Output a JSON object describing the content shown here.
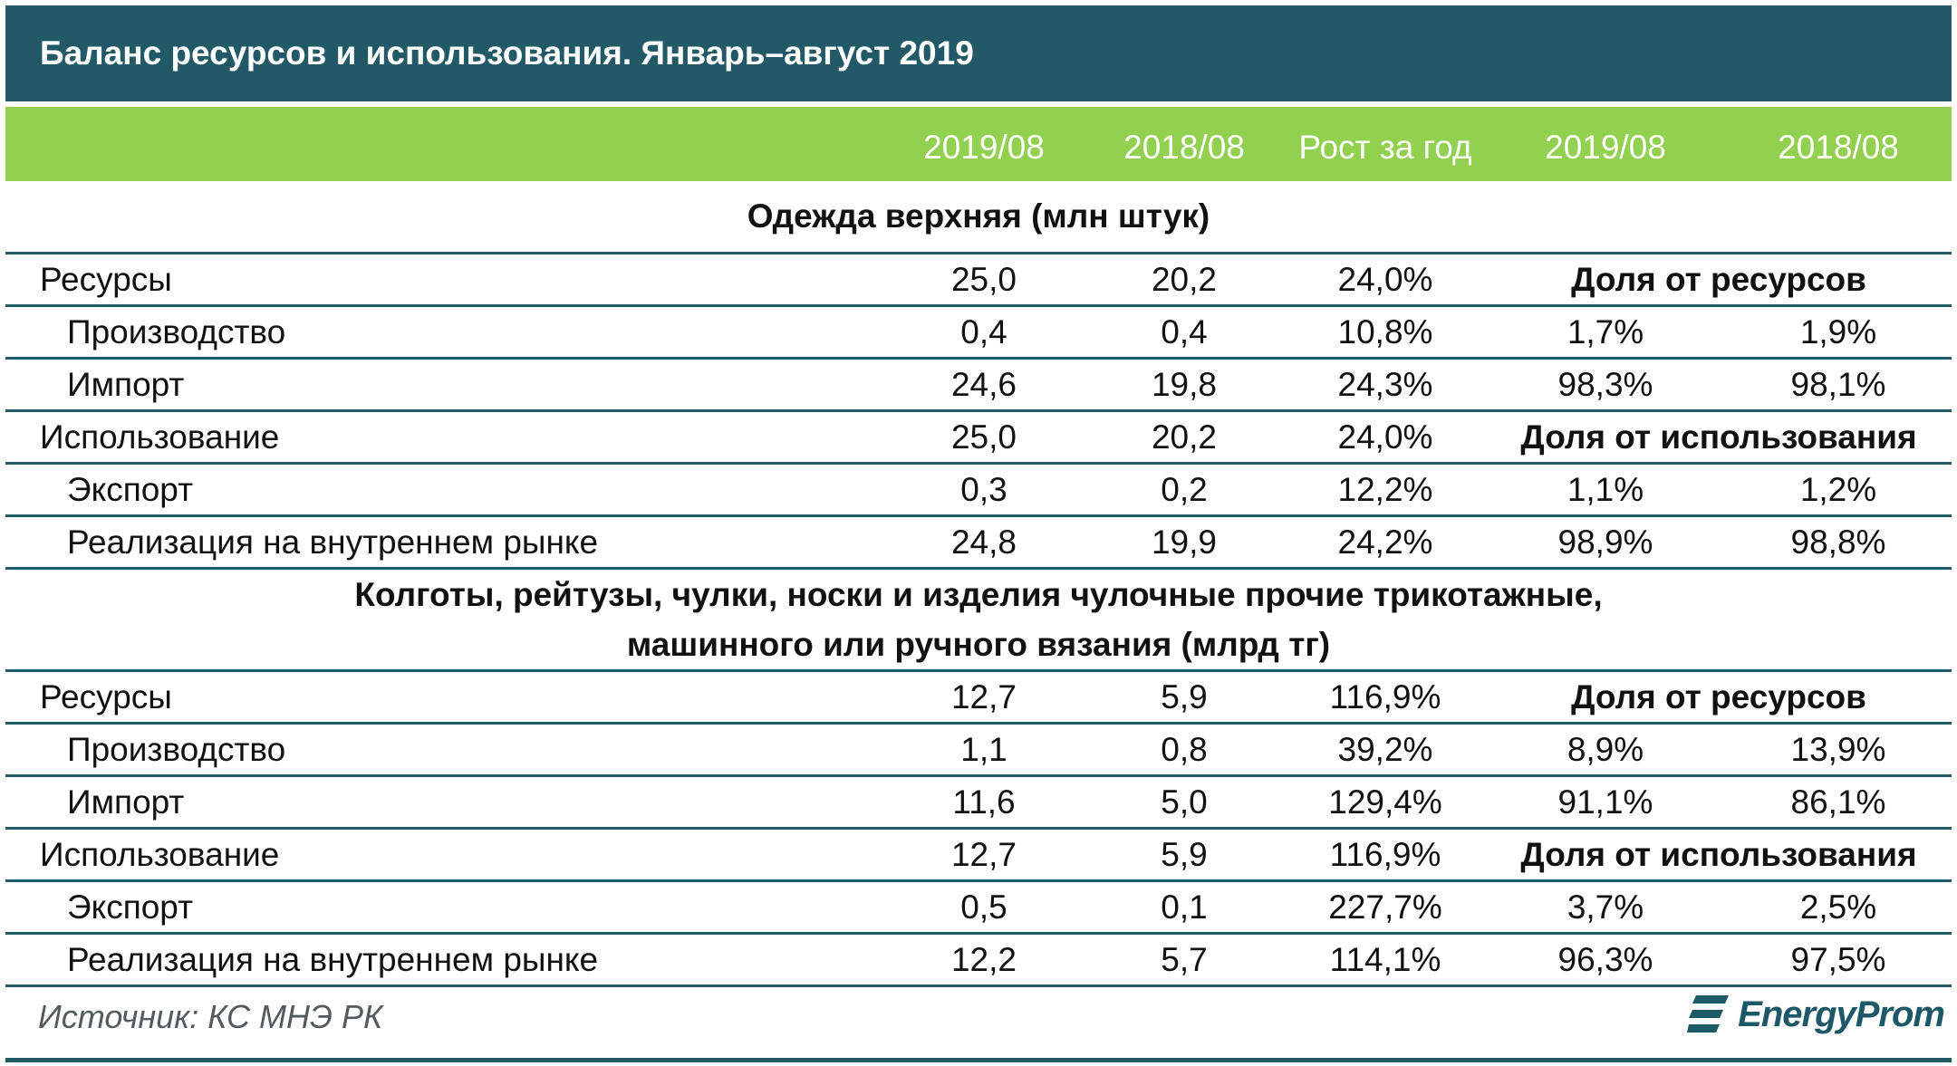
{
  "title": "Баланс ресурсов и использования. Январь–август 2019",
  "columns": [
    "2019/08",
    "2018/08",
    "Рост за год",
    "2019/08",
    "2018/08"
  ],
  "sections": [
    {
      "heading": "Одежда верхняя (млн штук)",
      "rows": [
        {
          "label": "Ресурсы",
          "v1": "25,0",
          "v2": "20,2",
          "growth": "24,0%",
          "share_head": "Доля от ресурсов"
        },
        {
          "label": "Производство",
          "v1": "0,4",
          "v2": "0,4",
          "growth": "10,8%",
          "s1": "1,7%",
          "s2": "1,9%"
        },
        {
          "label": "Импорт",
          "v1": "24,6",
          "v2": "19,8",
          "growth": "24,3%",
          "s1": "98,3%",
          "s2": "98,1%"
        },
        {
          "label": "Использование",
          "v1": "25,0",
          "v2": "20,2",
          "growth": "24,0%",
          "share_head": "Доля от использования"
        },
        {
          "label": "Экспорт",
          "v1": "0,3",
          "v2": "0,2",
          "growth": "12,2%",
          "s1": "1,1%",
          "s2": "1,2%"
        },
        {
          "label": "Реализация на внутреннем рынке",
          "v1": "24,8",
          "v2": "19,9",
          "growth": "24,2%",
          "s1": "98,9%",
          "s2": "98,8%"
        }
      ]
    },
    {
      "heading_line1": "Колготы, рейтузы, чулки, носки и изделия чулочные прочие трикотажные,",
      "heading_line2": "машинного или ручного вязания (млрд тг)",
      "rows": [
        {
          "label": "Ресурсы",
          "v1": "12,7",
          "v2": "5,9",
          "growth": "116,9%",
          "share_head": "Доля от ресурсов"
        },
        {
          "label": "Производство",
          "v1": "1,1",
          "v2": "0,8",
          "growth": "39,2%",
          "s1": "8,9%",
          "s2": "13,9%"
        },
        {
          "label": "Импорт",
          "v1": "11,6",
          "v2": "5,0",
          "growth": "129,4%",
          "s1": "91,1%",
          "s2": "86,1%"
        },
        {
          "label": "Использование",
          "v1": "12,7",
          "v2": "5,9",
          "growth": "116,9%",
          "share_head": "Доля от использования"
        },
        {
          "label": "Экспорт",
          "v1": "0,5",
          "v2": "0,1",
          "growth": "227,7%",
          "s1": "3,7%",
          "s2": "2,5%"
        },
        {
          "label": "Реализация на внутреннем рынке",
          "v1": "12,2",
          "v2": "5,7",
          "growth": "114,1%",
          "s1": "96,3%",
          "s2": "97,5%"
        }
      ]
    }
  ],
  "source": "Источник: КС МНЭ РК",
  "logo": "EnergyProm",
  "colors": {
    "title_bg": "#215967",
    "header_bg": "#92d050",
    "rule": "#215967"
  }
}
